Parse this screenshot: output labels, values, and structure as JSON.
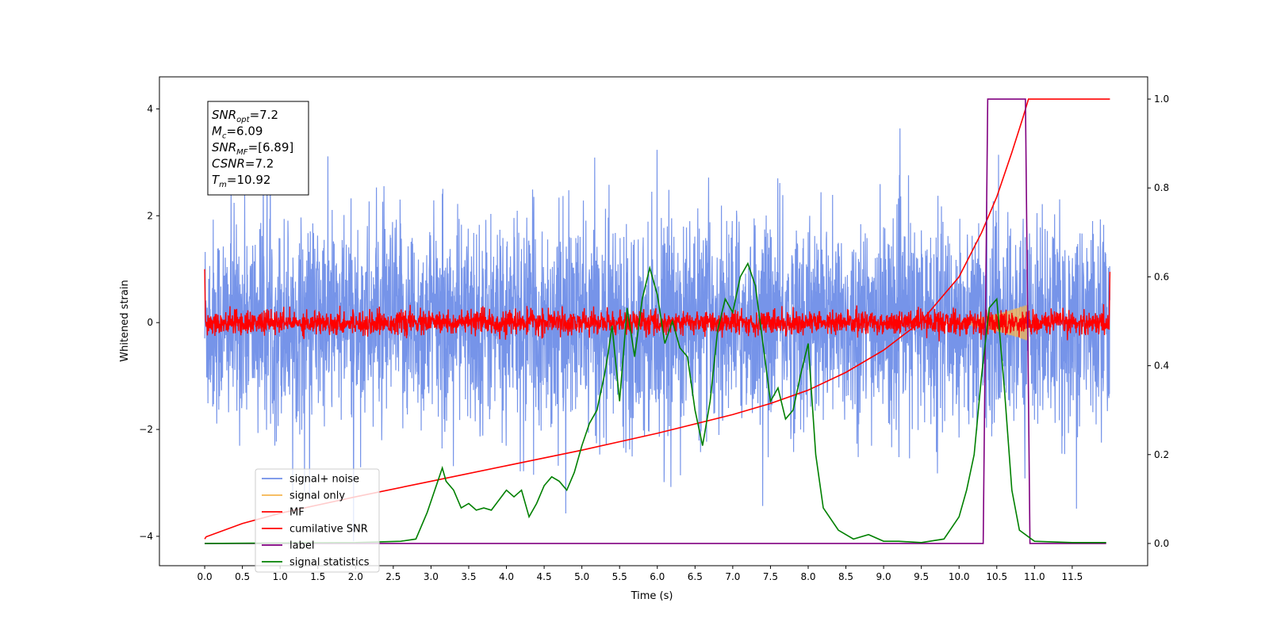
{
  "chart_data": {
    "type": "line",
    "xlabel": "Time (s)",
    "ylabel": "Whitened strain",
    "ylabel_right": "",
    "xlim": [
      -0.6,
      12.5
    ],
    "ylim": [
      -4.55,
      4.6
    ],
    "ylim_right": [
      -0.05,
      1.05
    ],
    "xticks": [
      "0.0",
      "0.5",
      "1.0",
      "1.5",
      "2.0",
      "2.5",
      "3.0",
      "3.5",
      "4.0",
      "4.5",
      "5.0",
      "5.5",
      "6.0",
      "6.5",
      "7.0",
      "7.5",
      "8.0",
      "8.5",
      "9.0",
      "9.5",
      "10.0",
      "10.5",
      "11.0",
      "11.5"
    ],
    "yticks_left": [
      "4",
      "2",
      "0",
      "-2",
      "-4"
    ],
    "yticks_right": [
      "1.0",
      "0.8",
      "0.6",
      "0.4",
      "0.2",
      "0.0"
    ],
    "annotation": {
      "lines": [
        {
          "base": "SNR",
          "sub": "opt",
          "rest": "=7.2"
        },
        {
          "base": "M",
          "sub": "c",
          "rest": "=6.09"
        },
        {
          "base": "SNR",
          "sub": "MF",
          "rest": "=[6.89]"
        },
        {
          "base": "CSNR",
          "sub": "",
          "rest": "=7.2"
        },
        {
          "base": "T",
          "sub": "m",
          "rest": "=10.92"
        }
      ]
    },
    "legend": {
      "placement": "lower-left",
      "entries": [
        {
          "label": "signal+ noise",
          "color": "#6f8ee8"
        },
        {
          "label": "signal only",
          "color": "#f5b54e"
        },
        {
          "label": "MF",
          "color": "#ff0000"
        },
        {
          "label": "cumilative SNR",
          "color": "#ff0000"
        },
        {
          "label": "label",
          "color": "#800080"
        },
        {
          "label": "signal statistics",
          "color": "#008000"
        }
      ]
    },
    "series": [
      {
        "name": "signal+ noise",
        "axis": "left",
        "color": "#6f8ee8",
        "style": "dense noise, amplitude ~ ±2.4 with spikes to ±4.2",
        "x_range": [
          0,
          12
        ]
      },
      {
        "name": "signal only",
        "axis": "left",
        "color": "#f5b54e",
        "style": "chirp growing from ~10.0 s to merger at ~10.92 s",
        "x_range": [
          0,
          12
        ]
      },
      {
        "name": "MF",
        "axis": "left",
        "color": "#ff0000",
        "style": "noise, amplitude ~ ±0.4, edge spikes to 1.0",
        "x_range": [
          0,
          12
        ]
      },
      {
        "name": "cumilative SNR",
        "axis": "right",
        "color": "#ff0000",
        "x": [
          0,
          0.02,
          0.5,
          1.0,
          2.0,
          3.0,
          4.0,
          5.0,
          6.0,
          7.0,
          7.5,
          8.0,
          8.5,
          9.0,
          9.5,
          10.0,
          10.3,
          10.5,
          10.7,
          10.85,
          10.92,
          11.0,
          12.0
        ],
        "values": [
          0.01,
          0.015,
          0.045,
          0.068,
          0.105,
          0.14,
          0.175,
          0.21,
          0.248,
          0.29,
          0.315,
          0.345,
          0.385,
          0.435,
          0.5,
          0.6,
          0.7,
          0.78,
          0.88,
          0.96,
          1.0,
          1.0,
          1.0
        ]
      },
      {
        "name": "label",
        "axis": "right",
        "color": "#800080",
        "x": [
          0,
          10.32,
          10.38,
          10.88,
          10.94,
          11.0,
          11.95
        ],
        "values": [
          0,
          0,
          1,
          1,
          0,
          0,
          0
        ]
      },
      {
        "name": "signal statistics",
        "axis": "right",
        "color": "#008000",
        "x": [
          0,
          2.0,
          2.6,
          2.8,
          2.95,
          3.05,
          3.15,
          3.2,
          3.3,
          3.4,
          3.5,
          3.6,
          3.7,
          3.8,
          4.0,
          4.1,
          4.2,
          4.3,
          4.4,
          4.5,
          4.6,
          4.7,
          4.8,
          4.9,
          5.0,
          5.1,
          5.2,
          5.3,
          5.35,
          5.4,
          5.5,
          5.6,
          5.7,
          5.8,
          5.9,
          6.0,
          6.1,
          6.2,
          6.3,
          6.4,
          6.5,
          6.6,
          6.7,
          6.8,
          6.9,
          7.0,
          7.1,
          7.2,
          7.3,
          7.4,
          7.5,
          7.6,
          7.7,
          7.8,
          7.9,
          8.0,
          8.1,
          8.2,
          8.4,
          8.6,
          8.8,
          9.0,
          9.2,
          9.5,
          9.8,
          10.0,
          10.1,
          10.2,
          10.3,
          10.4,
          10.5,
          10.6,
          10.7,
          10.8,
          11.0,
          11.5,
          11.95
        ],
        "values": [
          0.0,
          0.002,
          0.005,
          0.01,
          0.07,
          0.12,
          0.17,
          0.14,
          0.12,
          0.08,
          0.09,
          0.075,
          0.08,
          0.075,
          0.12,
          0.105,
          0.12,
          0.06,
          0.09,
          0.13,
          0.15,
          0.14,
          0.12,
          0.16,
          0.22,
          0.27,
          0.3,
          0.38,
          0.43,
          0.49,
          0.32,
          0.53,
          0.42,
          0.55,
          0.62,
          0.56,
          0.45,
          0.5,
          0.44,
          0.42,
          0.3,
          0.22,
          0.32,
          0.48,
          0.55,
          0.52,
          0.6,
          0.63,
          0.58,
          0.45,
          0.32,
          0.35,
          0.28,
          0.3,
          0.38,
          0.45,
          0.2,
          0.08,
          0.03,
          0.01,
          0.02,
          0.005,
          0.005,
          0.002,
          0.01,
          0.06,
          0.12,
          0.2,
          0.38,
          0.53,
          0.55,
          0.35,
          0.12,
          0.03,
          0.005,
          0.002,
          0.002
        ]
      }
    ]
  }
}
